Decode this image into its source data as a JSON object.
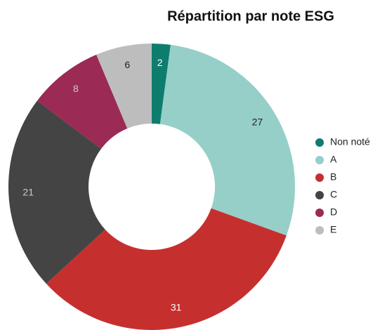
{
  "chart_data": {
    "type": "donut",
    "title": "Répartition par note ESG",
    "categories": [
      "Non noté",
      "A",
      "B",
      "C",
      "D",
      "E"
    ],
    "values": [
      2,
      27,
      31,
      21,
      8,
      6
    ],
    "colors": [
      "#0e7d6e",
      "#96cfc8",
      "#c5302f",
      "#444444",
      "#9b2a55",
      "#bdbdbd"
    ],
    "legend": "right"
  }
}
